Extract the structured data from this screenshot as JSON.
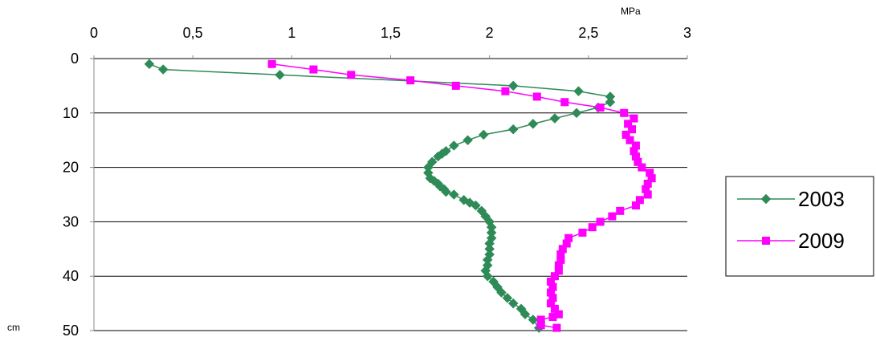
{
  "chart_data": {
    "type": "scatter",
    "x_axis": {
      "unit_label": "MPa",
      "range": [
        0,
        3
      ],
      "ticks": [
        "0",
        "0,5",
        "1",
        "1,5",
        "2",
        "2,5",
        "3"
      ],
      "position": "top"
    },
    "y_axis": {
      "unit_label": "cm",
      "range": [
        0,
        50
      ],
      "ticks": [
        "0",
        "10",
        "20",
        "30",
        "40",
        "50"
      ],
      "inverted": true
    },
    "grid": {
      "horizontal": true,
      "vertical": false
    },
    "legend_placement": "right",
    "series": [
      {
        "name": "2003",
        "color": "#2e8b57",
        "marker": "diamond",
        "x": [
          0.28,
          0.35,
          0.94,
          2.12,
          2.45,
          2.61,
          2.61,
          2.55,
          2.44,
          2.33,
          2.22,
          2.12,
          1.97,
          1.89,
          1.82,
          1.78,
          1.76,
          1.74,
          1.71,
          1.69,
          1.69,
          1.7,
          1.72,
          1.74,
          1.75,
          1.77,
          1.78,
          1.82,
          1.87,
          1.9,
          1.93,
          1.96,
          1.98,
          2.0,
          2.01,
          2.01,
          2.01,
          2.0,
          2.0,
          2.0,
          1.99,
          1.99,
          1.98,
          1.99,
          2.02,
          2.04,
          2.06,
          2.09,
          2.12,
          2.16,
          2.18,
          2.22,
          2.25
        ],
        "y": [
          1,
          2,
          3,
          5,
          6,
          7,
          8,
          9,
          10,
          11,
          12,
          13,
          14,
          15,
          16,
          17,
          17.5,
          18,
          19,
          20,
          21,
          22,
          22.5,
          23,
          23.5,
          24,
          24.5,
          25,
          26,
          26.5,
          27,
          28,
          29,
          30,
          31,
          32,
          33,
          34,
          35,
          36,
          37,
          38,
          39,
          40,
          41,
          42,
          43,
          44,
          45,
          46,
          47,
          48,
          49.5
        ]
      },
      {
        "name": "2009",
        "color": "#ff00ff",
        "marker": "square",
        "x": [
          0.9,
          1.11,
          1.3,
          1.6,
          1.83,
          2.08,
          2.24,
          2.38,
          2.56,
          2.68,
          2.73,
          2.7,
          2.72,
          2.69,
          2.71,
          2.74,
          2.73,
          2.74,
          2.75,
          2.77,
          2.81,
          2.82,
          2.8,
          2.79,
          2.8,
          2.76,
          2.74,
          2.66,
          2.62,
          2.56,
          2.52,
          2.47,
          2.4,
          2.39,
          2.37,
          2.36,
          2.36,
          2.35,
          2.35,
          2.33,
          2.31,
          2.32,
          2.31,
          2.32,
          2.31,
          2.33,
          2.35,
          2.32,
          2.26,
          2.26,
          2.34
        ],
        "y": [
          1,
          2,
          3,
          4,
          5,
          6,
          7,
          8,
          9,
          10,
          11,
          12,
          13,
          14,
          15,
          16,
          17,
          18,
          19,
          20,
          21,
          22,
          23,
          24,
          25,
          26,
          27,
          28,
          29,
          30,
          31,
          32,
          33,
          34,
          35,
          36,
          37,
          38,
          39,
          40,
          41,
          42,
          43,
          44,
          45,
          46,
          47,
          47.5,
          48,
          49,
          49.5
        ]
      }
    ]
  }
}
